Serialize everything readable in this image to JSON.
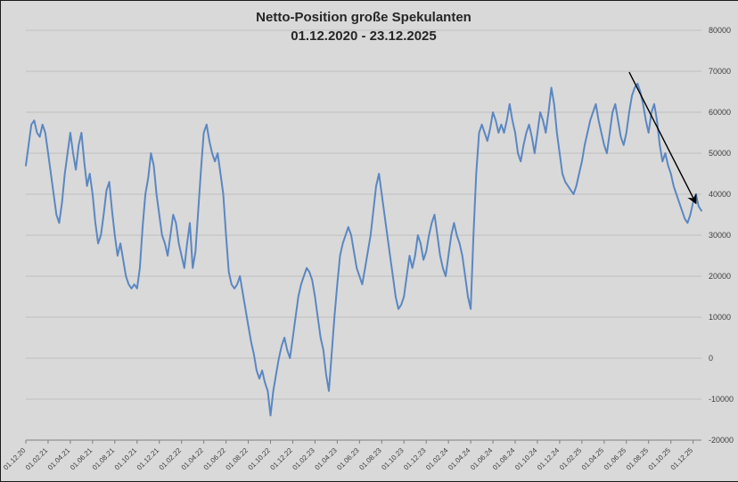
{
  "page": {
    "background": "#d9d9d9",
    "frame_border": "#1a1a1a"
  },
  "chart_data": {
    "type": "line",
    "title": "Netto-Position große Spekulanten",
    "subtitle": "01.12.2020 - 23.12.2025",
    "series_name": "Netto-Position große Spekulanten",
    "series_color": "#5b87c2",
    "grid_color": "#bfbfbf",
    "axis_color": "#808080",
    "label_color": "#404040",
    "annotation_color": "#000000",
    "start_date": "01.12.2020",
    "end_date": "23.12.2025",
    "interval": "weekly (estimated from plot)",
    "ylim": [
      -20000,
      80000
    ],
    "y_ticks": [
      -20000,
      -10000,
      0,
      10000,
      20000,
      30000,
      40000,
      50000,
      60000,
      70000,
      80000
    ],
    "x_tick_labels": [
      "01.12.20",
      "01.02.21",
      "01.04.21",
      "01.06.21",
      "01.08.21",
      "01.10.21",
      "01.12.21",
      "01.02.22",
      "01.04.22",
      "01.06.22",
      "01.08.22",
      "01.10.22",
      "01.12.22",
      "01.02.23",
      "01.04.23",
      "01.06.23",
      "01.08.23",
      "01.10.23",
      "01.12.23",
      "01.02.24",
      "01.04.24",
      "01.06.24",
      "01.08.24",
      "01.10.24",
      "01.12.24",
      "01.02.25",
      "01.04.25",
      "01.06.25",
      "01.08.25",
      "01.10.25",
      "01.12.25"
    ],
    "x_tick_indices": [
      0,
      8,
      16,
      24,
      32,
      40,
      48,
      56,
      64,
      72,
      80,
      88,
      96,
      104,
      112,
      120,
      128,
      136,
      144,
      152,
      160,
      168,
      176,
      184,
      192,
      200,
      208,
      216,
      224,
      232,
      240
    ],
    "values": [
      47000,
      52000,
      57000,
      58000,
      55000,
      54000,
      57000,
      55000,
      50000,
      45000,
      40000,
      35000,
      33000,
      38000,
      45000,
      50000,
      55000,
      50000,
      46000,
      52000,
      55000,
      48000,
      42000,
      45000,
      40000,
      33000,
      28000,
      30000,
      35000,
      41000,
      43000,
      36000,
      30000,
      25000,
      28000,
      24000,
      20000,
      18000,
      17000,
      18000,
      17000,
      22000,
      32000,
      40000,
      44000,
      50000,
      47000,
      40000,
      35000,
      30000,
      28000,
      25000,
      30000,
      35000,
      33000,
      28000,
      25000,
      22000,
      28000,
      33000,
      22000,
      26000,
      36000,
      46000,
      55000,
      57000,
      53000,
      50000,
      48000,
      50000,
      45000,
      40000,
      30000,
      21000,
      18000,
      17000,
      18000,
      20000,
      16000,
      12000,
      8000,
      4000,
      1000,
      -3000,
      -5000,
      -3000,
      -6000,
      -8000,
      -14000,
      -8000,
      -4000,
      0,
      3000,
      5000,
      2000,
      0,
      5000,
      10000,
      15000,
      18000,
      20000,
      22000,
      21000,
      19000,
      15000,
      10000,
      5000,
      2000,
      -4000,
      -8000,
      1000,
      10000,
      18000,
      25000,
      28000,
      30000,
      32000,
      30000,
      26000,
      22000,
      20000,
      18000,
      22000,
      26000,
      30000,
      36000,
      42000,
      45000,
      40000,
      35000,
      30000,
      25000,
      20000,
      15000,
      12000,
      13000,
      15000,
      20000,
      25000,
      22000,
      25000,
      30000,
      28000,
      24000,
      26000,
      30000,
      33000,
      35000,
      30000,
      25000,
      22000,
      20000,
      25000,
      30000,
      33000,
      30000,
      28000,
      25000,
      20000,
      15000,
      12000,
      30000,
      45000,
      55000,
      57000,
      55000,
      53000,
      56000,
      60000,
      58000,
      55000,
      57000,
      55000,
      58000,
      62000,
      58000,
      55000,
      50000,
      48000,
      52000,
      55000,
      57000,
      54000,
      50000,
      55000,
      60000,
      58000,
      55000,
      60000,
      66000,
      62000,
      55000,
      50000,
      45000,
      43000,
      42000,
      41000,
      40000,
      42000,
      45000,
      48000,
      52000,
      55000,
      58000,
      60000,
      62000,
      58000,
      55000,
      52000,
      50000,
      55000,
      60000,
      62000,
      58000,
      54000,
      52000,
      55000,
      60000,
      64000,
      66000,
      67000,
      65000,
      62000,
      58000,
      55000,
      60000,
      62000,
      58000,
      52000,
      48000,
      50000,
      47000,
      45000,
      42000,
      40000,
      38000,
      36000,
      34000,
      33000,
      35000,
      38000,
      40000,
      37000,
      36000
    ],
    "annotation": {
      "type": "arrow",
      "from": {
        "index": 217,
        "value": 69800
      },
      "to": {
        "index": 241,
        "value": 37800
      }
    },
    "layout": {
      "grid": "horizontal only",
      "y_axis_position": "right",
      "x_labels_rotated": true,
      "legend": "none"
    }
  }
}
